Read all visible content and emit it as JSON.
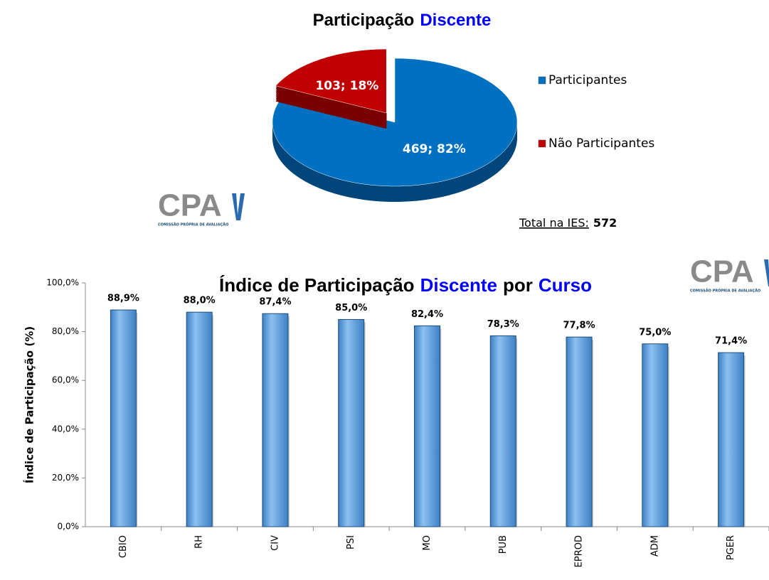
{
  "chart_data": [
    {
      "type": "pie",
      "title": [
        "Participação",
        "Discente"
      ],
      "title_colors": [
        "#000000",
        "#0000ff"
      ],
      "categories": [
        "Participantes",
        "Não Participantes"
      ],
      "values": [
        469,
        103
      ],
      "value_labels": [
        "469; 82%",
        "103; 18%"
      ],
      "colors": [
        "#0070c0",
        "#c00000"
      ],
      "total_label": "Total na IES:",
      "total": 572
    },
    {
      "type": "bar",
      "title": [
        "Índice de Participação",
        "Discente",
        "por",
        "Curso"
      ],
      "title_colors": [
        "#000000",
        "#0000ff",
        "#000000",
        "#0000ff"
      ],
      "categories": [
        "CBIO",
        "RH",
        "CIV",
        "PSI",
        "MO",
        "PUB",
        "EPROD",
        "ADM",
        "PGER"
      ],
      "values": [
        88.9,
        88.0,
        87.4,
        85.0,
        82.4,
        78.3,
        77.8,
        75.0,
        71.4
      ],
      "value_labels": [
        "88,9%",
        "88,0%",
        "87,4%",
        "85,0%",
        "82,4%",
        "78,3%",
        "77,8%",
        "75,0%",
        "71,4%"
      ],
      "color": "#6aa7e0",
      "ylabel": "Índice de Participação (%)",
      "ylim": [
        0,
        100
      ],
      "yticks": [
        {
          "value": 0,
          "label": "0,0%"
        },
        {
          "value": 20,
          "label": "20,0%"
        },
        {
          "value": 40,
          "label": "40,0%"
        },
        {
          "value": 60,
          "label": "60,0%"
        },
        {
          "value": 80,
          "label": "80,0%"
        },
        {
          "value": 100,
          "label": "100,0%"
        }
      ]
    }
  ],
  "logo": {
    "text": "CPA",
    "subtitle": "COMISSÃO PRÓPRIA DE AVALIAÇÃO"
  }
}
